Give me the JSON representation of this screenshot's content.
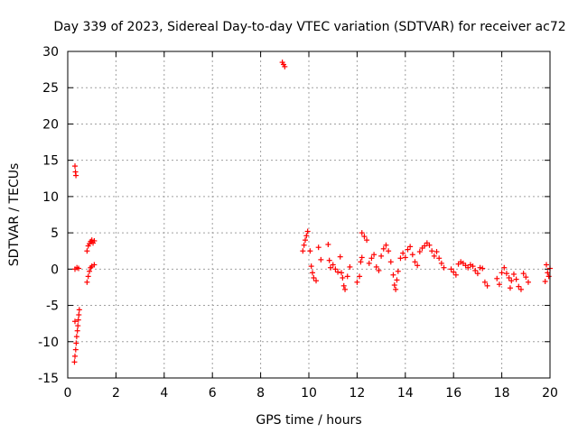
{
  "chart_data": {
    "type": "scatter",
    "title": "Day 339 of 2023, Sidereal Day-to-day VTEC variation (SDTVAR) for receiver ac72",
    "xlabel": "GPS time / hours",
    "ylabel": "SDTVAR / TECUs",
    "xlim": [
      0,
      20
    ],
    "ylim": [
      -15,
      30
    ],
    "xticks": [
      0,
      2,
      4,
      6,
      8,
      10,
      12,
      14,
      16,
      18,
      20
    ],
    "yticks": [
      -15,
      -10,
      -5,
      0,
      5,
      10,
      15,
      20,
      25,
      30
    ],
    "grid": true,
    "marker": "+",
    "color": "#ff0000",
    "series": [
      {
        "name": "ac72",
        "points": [
          [
            0.3,
            14.2
          ],
          [
            0.32,
            13.4
          ],
          [
            0.34,
            12.9
          ],
          [
            0.3,
            0.0
          ],
          [
            0.38,
            0.2
          ],
          [
            0.45,
            0.1
          ],
          [
            0.28,
            -12.8
          ],
          [
            0.3,
            -12.0
          ],
          [
            0.33,
            -11.1
          ],
          [
            0.35,
            -10.2
          ],
          [
            0.37,
            -9.3
          ],
          [
            0.4,
            -8.5
          ],
          [
            0.42,
            -7.8
          ],
          [
            0.3,
            -7.2
          ],
          [
            0.44,
            -7.0
          ],
          [
            0.46,
            -6.3
          ],
          [
            0.48,
            -5.6
          ],
          [
            0.8,
            -1.8
          ],
          [
            0.85,
            -1.0
          ],
          [
            0.9,
            -0.3
          ],
          [
            0.95,
            0.2
          ],
          [
            1.0,
            0.4
          ],
          [
            1.1,
            0.6
          ],
          [
            0.8,
            2.5
          ],
          [
            0.85,
            3.2
          ],
          [
            0.9,
            3.5
          ],
          [
            0.95,
            3.8
          ],
          [
            1.0,
            4.0
          ],
          [
            1.05,
            3.6
          ],
          [
            1.1,
            3.9
          ],
          [
            8.9,
            28.5
          ],
          [
            8.95,
            28.2
          ],
          [
            9.0,
            27.9
          ],
          [
            9.75,
            2.5
          ],
          [
            9.8,
            3.3
          ],
          [
            9.85,
            4.0
          ],
          [
            9.9,
            4.6
          ],
          [
            9.95,
            5.2
          ],
          [
            10.05,
            2.5
          ],
          [
            10.1,
            0.4
          ],
          [
            10.15,
            -0.5
          ],
          [
            10.2,
            -1.2
          ],
          [
            10.3,
            -1.6
          ],
          [
            10.4,
            3.0
          ],
          [
            10.5,
            1.3
          ],
          [
            10.8,
            3.4
          ],
          [
            10.85,
            1.2
          ],
          [
            10.9,
            0.2
          ],
          [
            11.0,
            0.6
          ],
          [
            11.1,
            0.0
          ],
          [
            11.2,
            -0.4
          ],
          [
            11.3,
            1.7
          ],
          [
            11.35,
            -0.5
          ],
          [
            11.4,
            -1.2
          ],
          [
            11.45,
            -2.3
          ],
          [
            11.5,
            -2.8
          ],
          [
            11.6,
            -1.0
          ],
          [
            11.7,
            0.3
          ],
          [
            12.0,
            -1.8
          ],
          [
            12.1,
            -1.0
          ],
          [
            12.15,
            1.0
          ],
          [
            12.2,
            1.6
          ],
          [
            12.2,
            5.0
          ],
          [
            12.3,
            4.5
          ],
          [
            12.4,
            4.0
          ],
          [
            12.5,
            0.8
          ],
          [
            12.6,
            1.5
          ],
          [
            12.7,
            2.0
          ],
          [
            12.8,
            0.3
          ],
          [
            12.9,
            -0.2
          ],
          [
            13.0,
            1.8
          ],
          [
            13.1,
            2.8
          ],
          [
            13.2,
            3.3
          ],
          [
            13.3,
            2.5
          ],
          [
            13.4,
            1.0
          ],
          [
            13.5,
            -0.8
          ],
          [
            13.55,
            -2.2
          ],
          [
            13.6,
            -2.8
          ],
          [
            13.65,
            -1.5
          ],
          [
            13.7,
            -0.3
          ],
          [
            13.8,
            1.5
          ],
          [
            13.9,
            2.2
          ],
          [
            14.0,
            1.6
          ],
          [
            14.1,
            2.7
          ],
          [
            14.2,
            3.1
          ],
          [
            14.3,
            2.0
          ],
          [
            14.4,
            1.0
          ],
          [
            14.5,
            0.5
          ],
          [
            14.6,
            2.4
          ],
          [
            14.7,
            2.9
          ],
          [
            14.8,
            3.2
          ],
          [
            14.9,
            3.6
          ],
          [
            15.0,
            3.3
          ],
          [
            15.1,
            2.5
          ],
          [
            15.2,
            1.8
          ],
          [
            15.3,
            2.4
          ],
          [
            15.4,
            1.5
          ],
          [
            15.5,
            0.8
          ],
          [
            15.6,
            0.2
          ],
          [
            15.9,
            0.0
          ],
          [
            16.0,
            -0.4
          ],
          [
            16.1,
            -0.8
          ],
          [
            16.2,
            0.7
          ],
          [
            16.3,
            1.0
          ],
          [
            16.4,
            0.8
          ],
          [
            16.5,
            0.5
          ],
          [
            16.6,
            0.2
          ],
          [
            16.7,
            0.6
          ],
          [
            16.8,
            0.4
          ],
          [
            16.9,
            -0.2
          ],
          [
            17.0,
            -0.6
          ],
          [
            17.1,
            0.2
          ],
          [
            17.2,
            0.1
          ],
          [
            17.3,
            -1.8
          ],
          [
            17.4,
            -2.3
          ],
          [
            17.8,
            -1.3
          ],
          [
            17.9,
            -2.1
          ],
          [
            18.0,
            -0.5
          ],
          [
            18.1,
            0.2
          ],
          [
            18.2,
            -0.6
          ],
          [
            18.3,
            -1.2
          ],
          [
            18.35,
            -2.6
          ],
          [
            18.4,
            -1.6
          ],
          [
            18.5,
            -0.7
          ],
          [
            18.6,
            -1.4
          ],
          [
            18.7,
            -2.4
          ],
          [
            18.8,
            -2.8
          ],
          [
            18.9,
            -0.6
          ],
          [
            19.0,
            -1.1
          ],
          [
            19.1,
            -1.8
          ],
          [
            19.8,
            -1.7
          ],
          [
            19.85,
            0.6
          ],
          [
            19.9,
            -0.5
          ],
          [
            19.95,
            -1.0
          ],
          [
            20.0,
            0.1
          ]
        ]
      }
    ]
  }
}
